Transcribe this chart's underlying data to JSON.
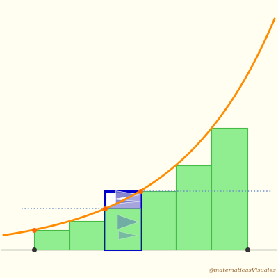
{
  "bg_color": "#FFFEF0",
  "bar_color": "#90EE90",
  "bar_edge_color": "#44BB44",
  "curve_color": "#FF8C00",
  "box_color": "#0000CC",
  "dot_color": "#FF6600",
  "dashed_color": "#6688CC",
  "tri_purple": "#7777CC",
  "tri_teal": "#6699AA",
  "watermark": "@matematicasVisuales",
  "watermark_color": "#996633",
  "n_bars": 6,
  "highlight_bar": 2,
  "axis_color": "#777777"
}
